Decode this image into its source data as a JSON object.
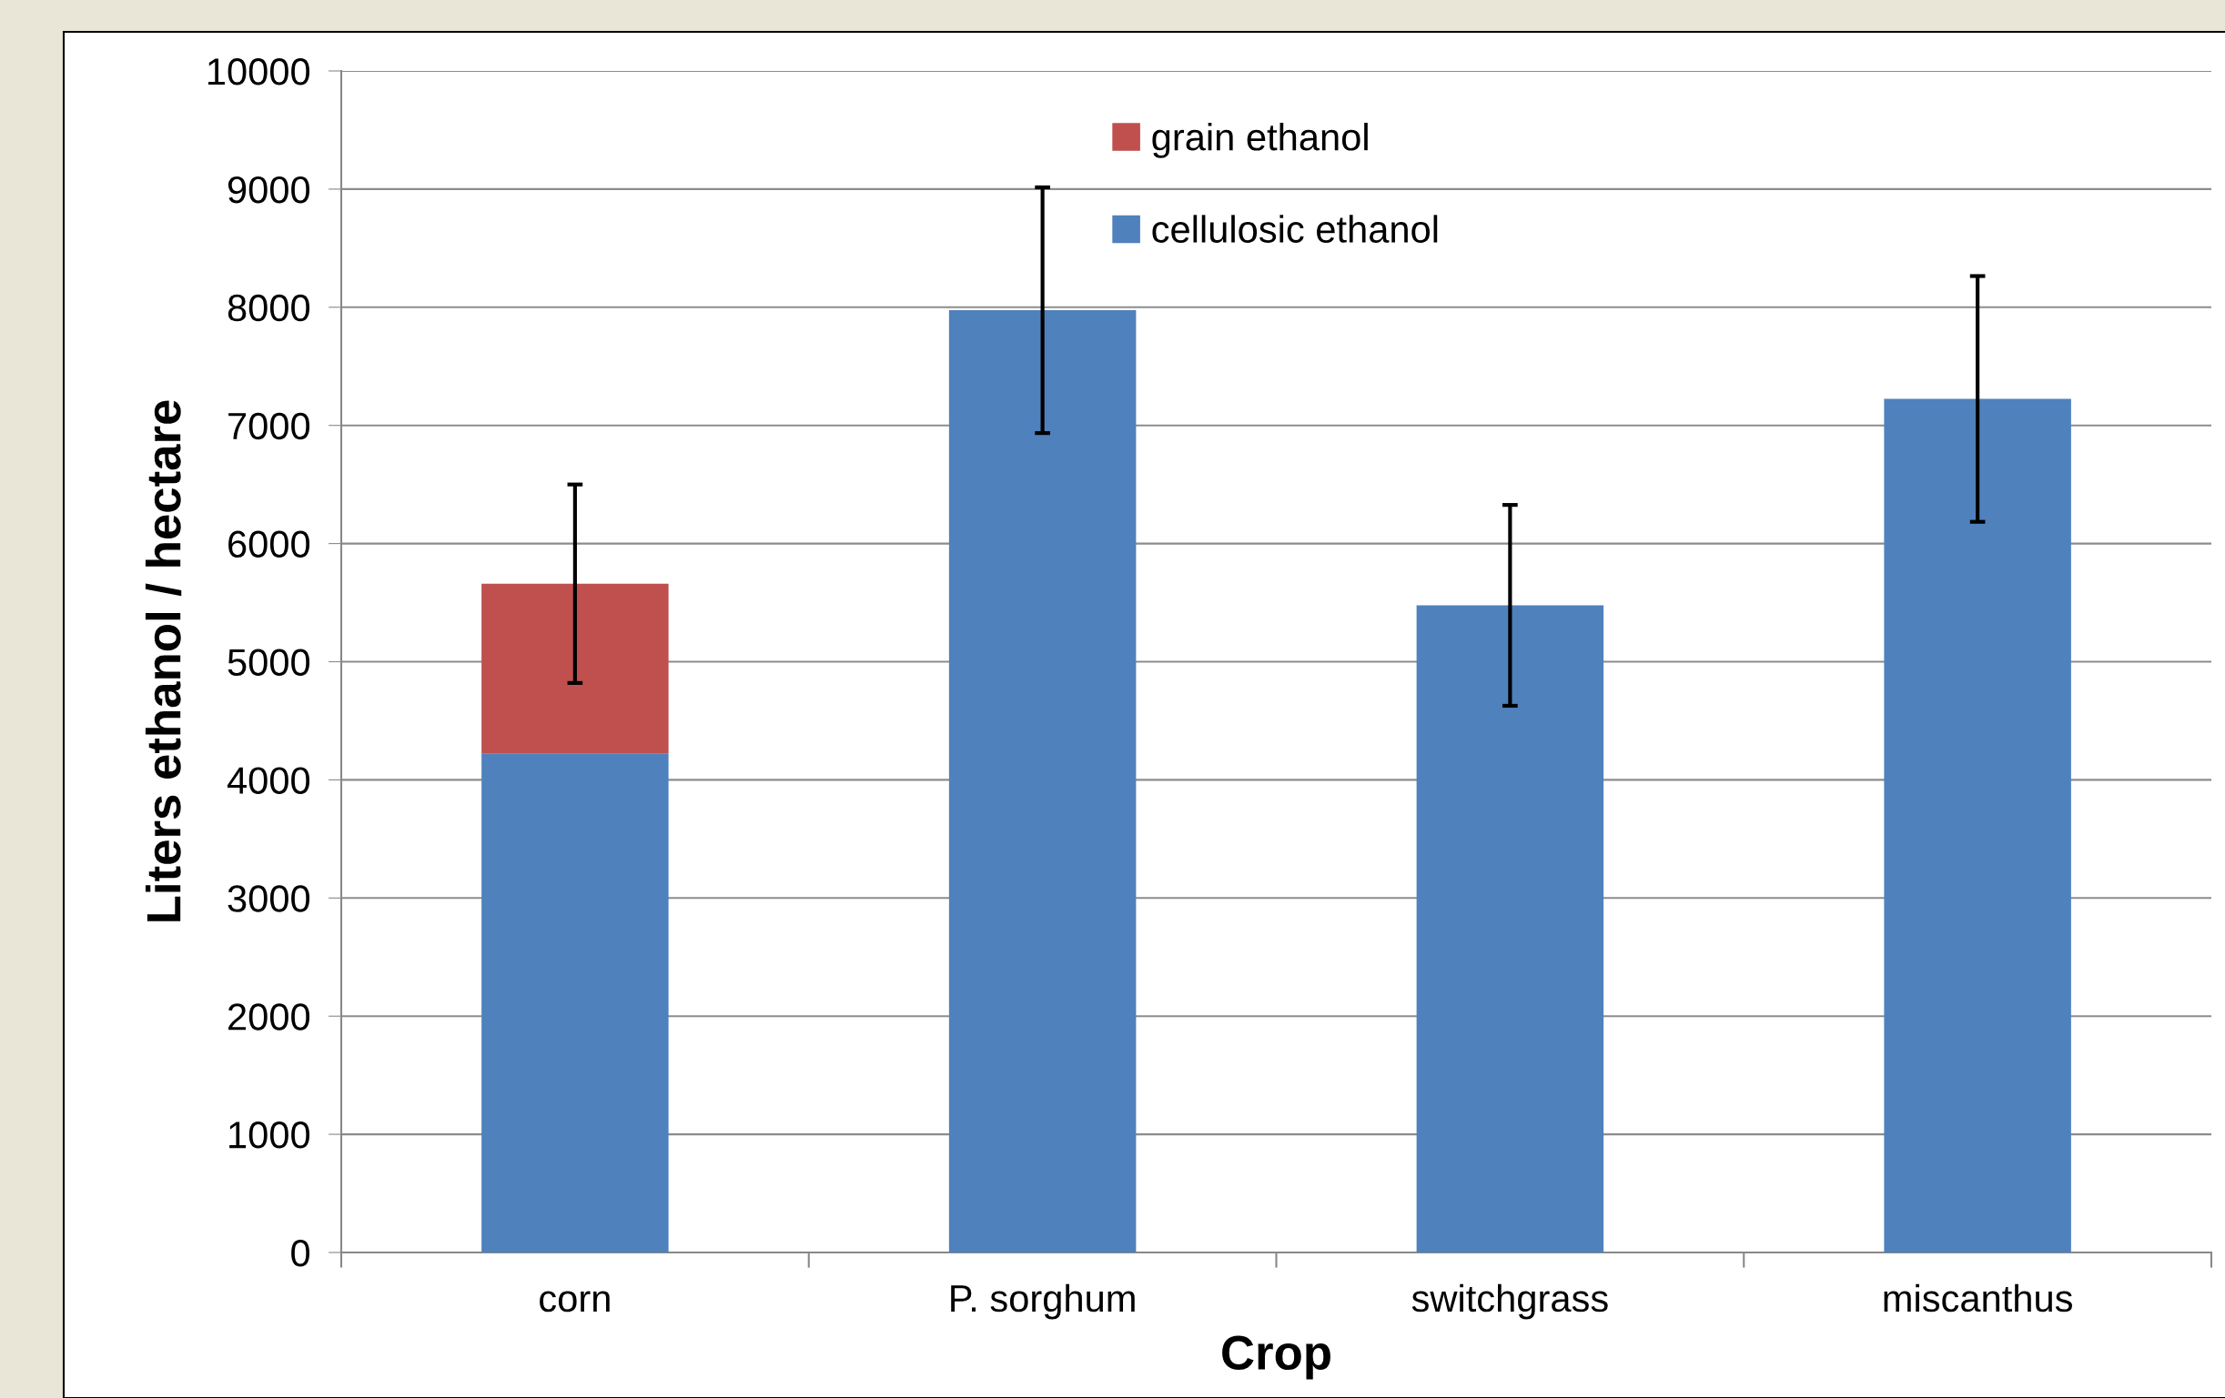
{
  "chart_data": {
    "type": "bar",
    "stacked": true,
    "xlabel": "Crop",
    "ylabel": "Liters ethanol / hectare",
    "categories": [
      "corn",
      "P. sorghum",
      "switchgrass",
      "miscanthus"
    ],
    "series": [
      {
        "name": "cellulosic ethanol",
        "color": "#4f81bd",
        "values": [
          4220,
          7975,
          5477,
          7224
        ],
        "errors": [
          null,
          1040,
          850,
          1040
        ]
      },
      {
        "name": "grain ethanol",
        "color": "#c0504d",
        "values": [
          1440,
          null,
          null,
          null
        ],
        "errors": [
          840,
          null,
          null,
          null
        ]
      }
    ],
    "ylim": [
      0,
      10000
    ],
    "yticks": [
      0,
      1000,
      2000,
      3000,
      4000,
      5000,
      6000,
      7000,
      8000,
      9000,
      10000
    ],
    "grid": "y",
    "legend": "top"
  }
}
